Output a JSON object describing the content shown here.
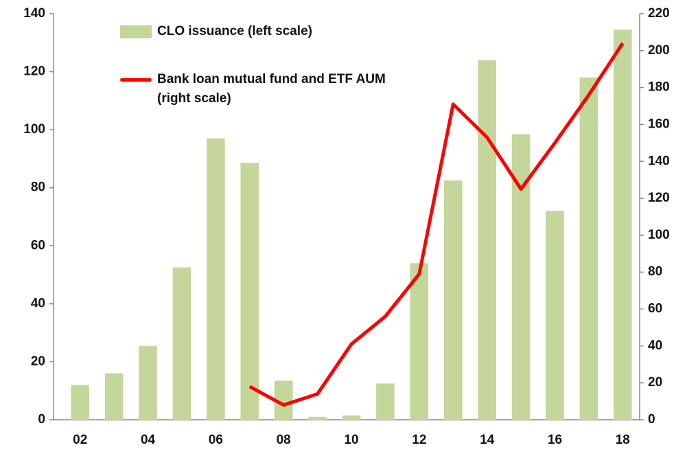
{
  "chart_data": {
    "type": "bar-line",
    "categories": [
      "02",
      null,
      "04",
      null,
      "06",
      null,
      "08",
      null,
      "10",
      null,
      "12",
      null,
      "14",
      null,
      "16",
      null,
      "18"
    ],
    "series": [
      {
        "name": "CLO issuance (left scale)",
        "type": "bar",
        "color": "#c4d79b",
        "values": [
          12,
          16,
          25.5,
          52.5,
          97,
          88.5,
          13.5,
          1,
          1.5,
          12.5,
          54,
          82.5,
          124,
          98.5,
          72,
          118,
          134.5
        ]
      },
      {
        "name": "Bank loan mutual fund and ETF AUM (right scale)",
        "type": "line",
        "axis": "y2",
        "color": "#ff0000",
        "values": [
          null,
          null,
          null,
          null,
          null,
          18,
          8,
          14,
          41,
          56,
          79,
          171,
          153,
          125,
          150,
          176,
          204
        ]
      }
    ],
    "ylim": [
      0,
      140
    ],
    "yticks": [
      0,
      20,
      40,
      60,
      80,
      100,
      120,
      140
    ],
    "y2lim": [
      0,
      220
    ],
    "y2ticks": [
      0,
      20,
      40,
      60,
      80,
      100,
      120,
      140,
      160,
      180,
      200,
      220
    ],
    "legend": "upper left",
    "grid": false
  }
}
